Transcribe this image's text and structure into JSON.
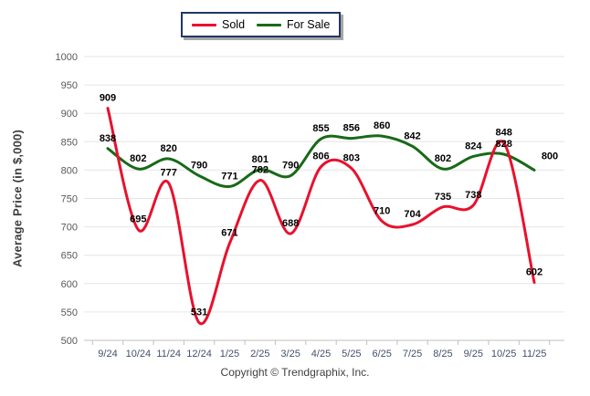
{
  "legend": {
    "items": [
      {
        "label": "Sold",
        "color": "#e8112d"
      },
      {
        "label": "For Sale",
        "color": "#186a18"
      }
    ]
  },
  "chart_data": {
    "type": "line",
    "title": "",
    "categories": [
      "9/24",
      "10/24",
      "11/24",
      "12/24",
      "1/25",
      "2/25",
      "3/25",
      "4/25",
      "5/25",
      "6/25",
      "7/25",
      "8/25",
      "9/25",
      "10/25",
      "11/25"
    ],
    "series": [
      {
        "name": "Sold",
        "color": "#e8112d",
        "values": [
          909,
          695,
          777,
          531,
          671,
          782,
          688,
          806,
          803,
          710,
          704,
          735,
          738,
          848,
          602
        ]
      },
      {
        "name": "For Sale",
        "color": "#186a18",
        "values": [
          838,
          802,
          820,
          790,
          771,
          801,
          790,
          855,
          856,
          860,
          842,
          802,
          824,
          828,
          800
        ]
      }
    ],
    "xlabel": "",
    "ylabel": "Average Price (in $,000)",
    "ylim": [
      500,
      1000
    ],
    "yticks": [
      1000,
      950,
      900,
      850,
      800,
      750,
      700,
      650,
      600,
      550,
      500
    ],
    "grid": "horizontal",
    "legend_position": "top-center",
    "smooth": true,
    "data_labels": true
  },
  "footer": {
    "copyright": "Copyright © Trendgraphix, Inc."
  },
  "colors": {
    "grid": "#e6e6e6",
    "axis": "#c0c0c0",
    "ytick_text": "#595959",
    "xtick_text": "#44506b",
    "data_label": "#000000",
    "legend_border": "#1f3864",
    "legend_shadow": "#a6a6a6"
  }
}
